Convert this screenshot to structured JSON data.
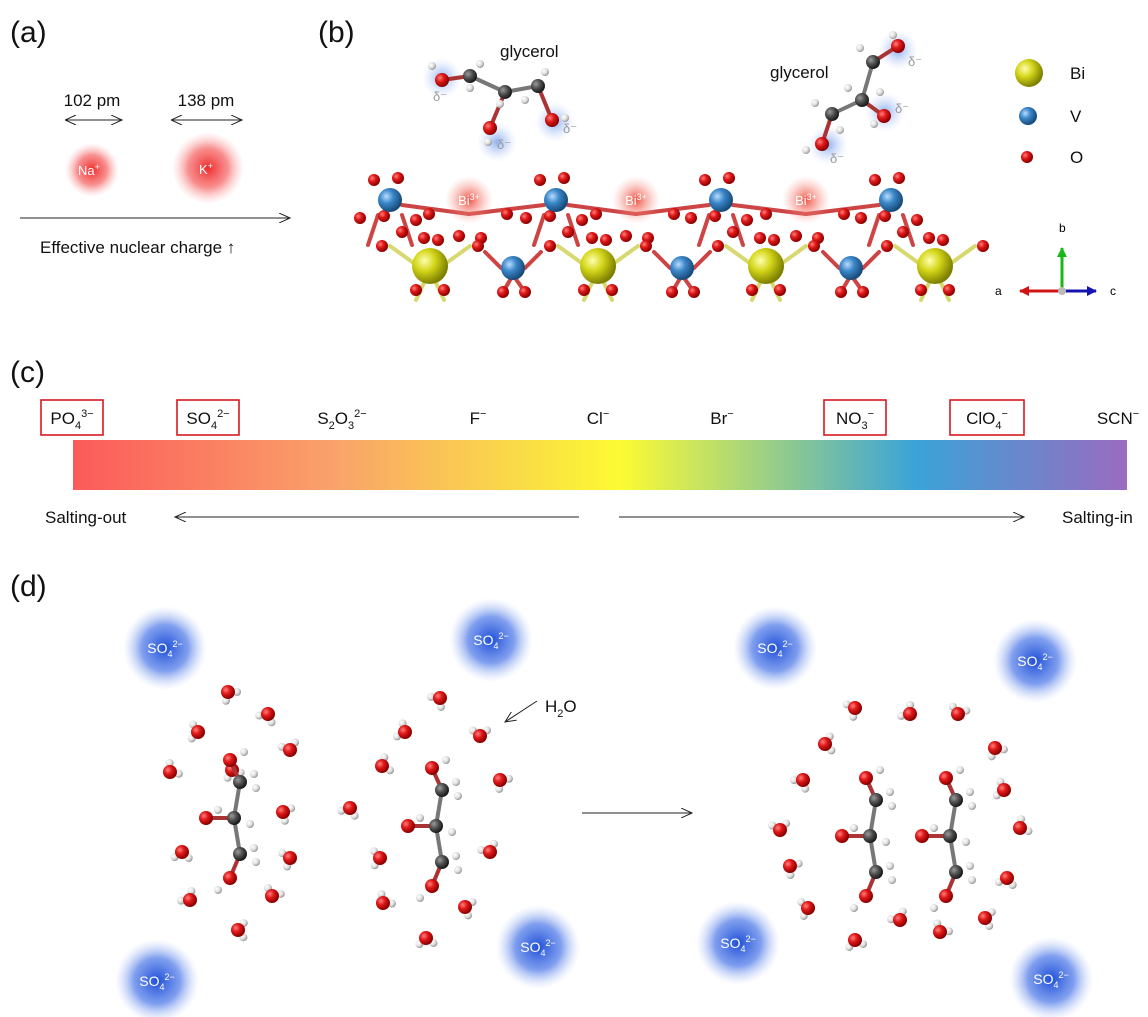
{
  "panels": {
    "a": {
      "label": "(a)",
      "ions": [
        {
          "symbol": "Na",
          "charge": "+",
          "radius": "102 pm"
        },
        {
          "symbol": "K",
          "charge": "+",
          "radius": "138 pm"
        }
      ],
      "axis_label": "Effective nuclear charge ↑"
    },
    "b": {
      "label": "(b)",
      "molecule_labels": [
        "glycerol",
        "glycerol"
      ],
      "delta_label": "δ⁻",
      "bi_ion": {
        "symbol": "Bi",
        "charge": "3+"
      },
      "legend": [
        {
          "label": "Bi",
          "color": "#d4d61a"
        },
        {
          "label": "V",
          "color": "#3a86c8"
        },
        {
          "label": "O",
          "color": "#d41a1a"
        }
      ],
      "axes": {
        "a": "a",
        "b": "b",
        "c": "c"
      }
    },
    "c": {
      "label": "(c)",
      "anions": [
        {
          "base": "PO",
          "sub": "4",
          "sup": "3−",
          "boxed": true
        },
        {
          "base": "SO",
          "sub": "4",
          "sup": "2−",
          "boxed": true
        },
        {
          "base": "S",
          "sub": "2",
          "mid": "O",
          "sub2": "3",
          "sup": "2−",
          "boxed": false
        },
        {
          "base": "F",
          "sub": "",
          "sup": "−",
          "boxed": false
        },
        {
          "base": "Cl",
          "sub": "",
          "sup": "−",
          "boxed": false
        },
        {
          "base": "Br",
          "sub": "",
          "sup": "−",
          "boxed": false
        },
        {
          "base": "NO",
          "sub": "3",
          "sup": "−",
          "boxed": true
        },
        {
          "base": "ClO",
          "sub": "4",
          "sup": "−",
          "boxed": true
        },
        {
          "base": "SCN",
          "sub": "",
          "sup": "−",
          "boxed": false
        }
      ],
      "left_label": "Salting-out",
      "right_label": "Salting-in",
      "gradient_colors": [
        "#fc5a5a",
        "#f9a36a",
        "#fbfb33",
        "#3aa3d8",
        "#9a6bc0"
      ]
    },
    "d": {
      "label": "(d)",
      "sulfate": {
        "base": "SO",
        "sub": "4",
        "sup": "2−"
      },
      "water_label": {
        "base": "H",
        "sub": "2",
        "tail": "O"
      }
    }
  },
  "colors": {
    "oxygen": "#d0141a",
    "hydrogen": "#e8e8e8",
    "carbon": "#505050",
    "vanadium": "#3a86c8",
    "bismuth": "#d4d61a",
    "sulfate_glow": "#3d6fe0",
    "cation_glow": "#f03b3b"
  }
}
